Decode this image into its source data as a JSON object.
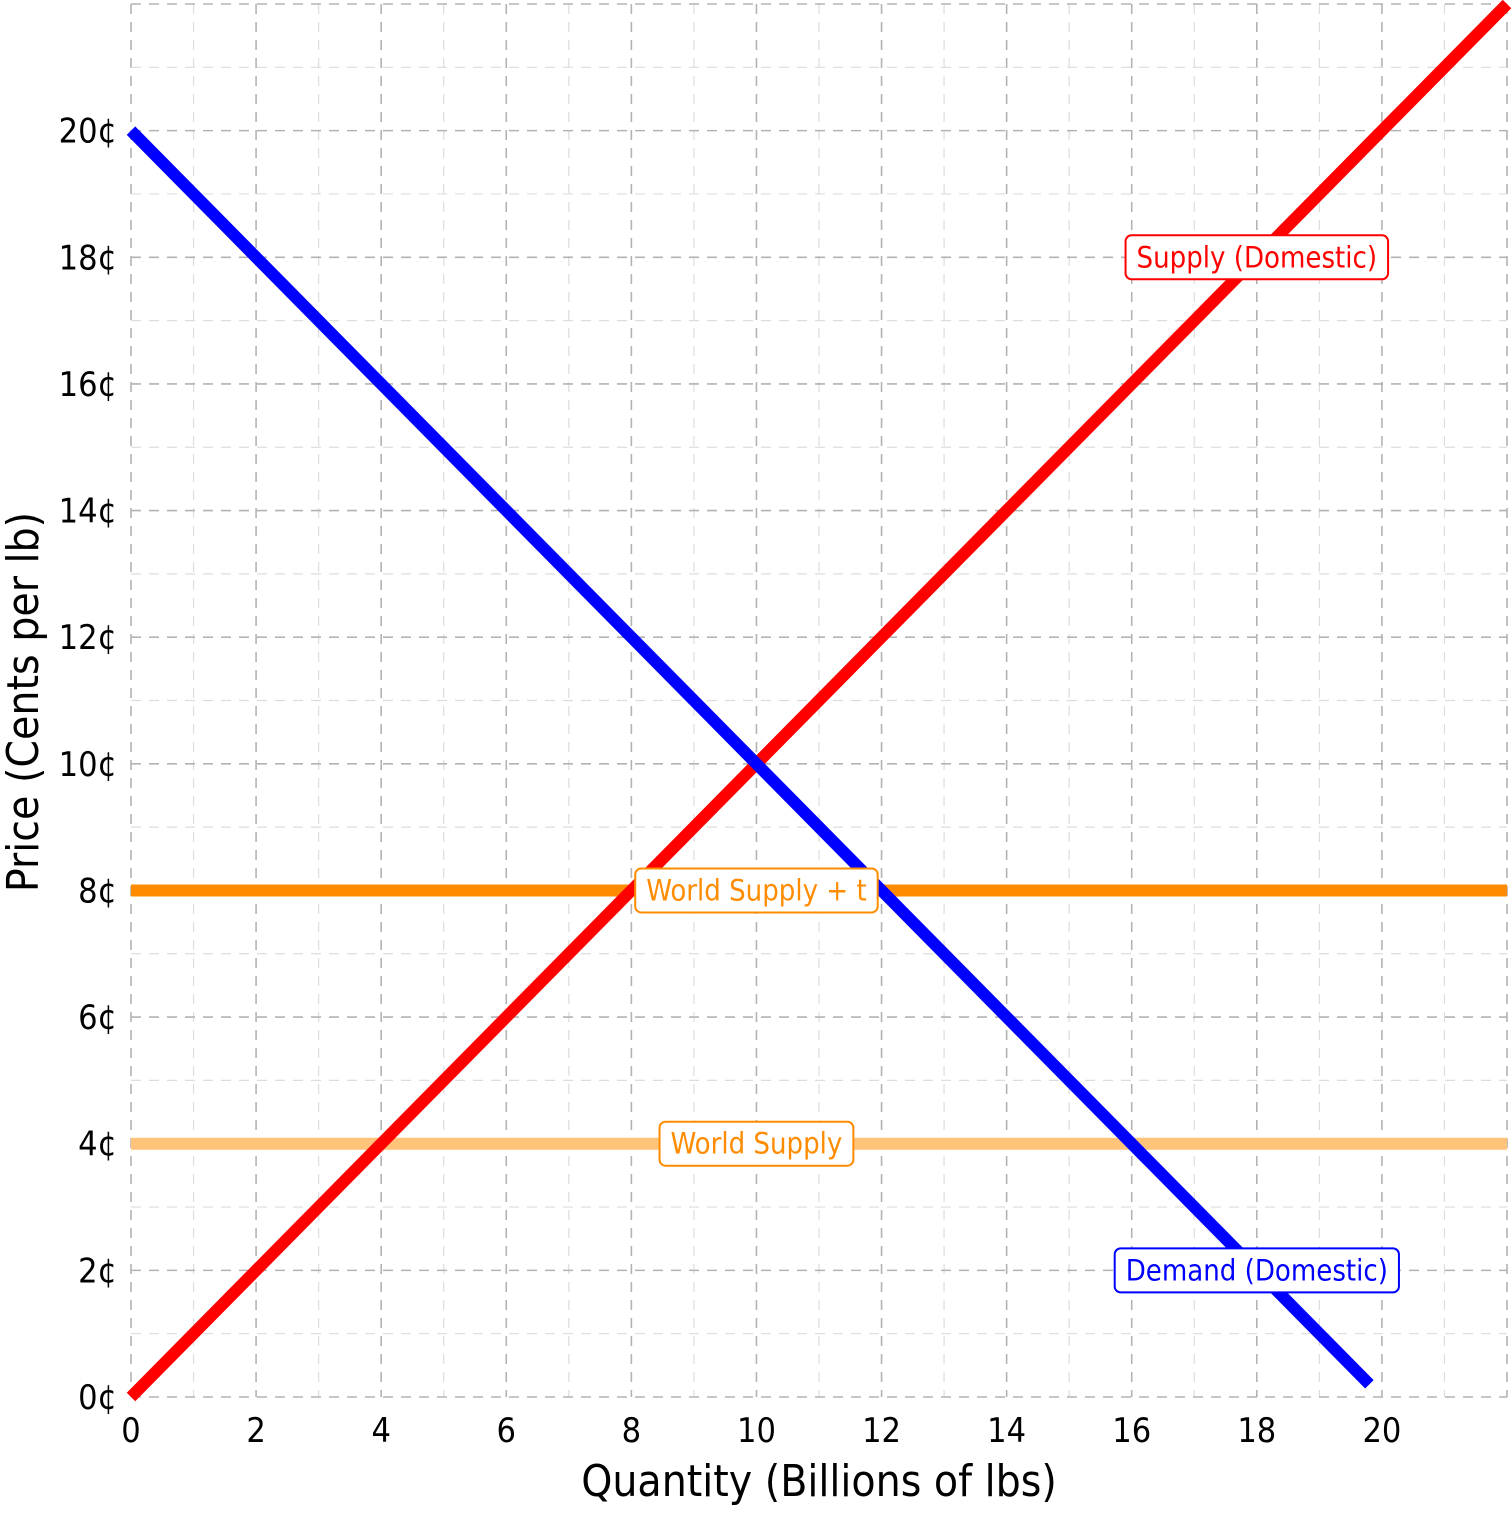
{
  "chart_data": {
    "type": "line",
    "xlabel": "Quantity (Billions of lbs)",
    "ylabel": "Price (Cents per lb)",
    "xlim": [
      0,
      22
    ],
    "ylim": [
      0,
      22
    ],
    "x_ticks": [
      0,
      2,
      4,
      6,
      8,
      10,
      12,
      14,
      16,
      18,
      20
    ],
    "y_ticks": [
      0,
      2,
      4,
      6,
      8,
      10,
      12,
      14,
      16,
      18,
      20
    ],
    "x_tick_labels": [
      "0",
      "2",
      "4",
      "6",
      "8",
      "10",
      "12",
      "14",
      "16",
      "18",
      "20"
    ],
    "y_tick_labels": [
      "0¢",
      "2¢",
      "4¢",
      "6¢",
      "8¢",
      "10¢",
      "12¢",
      "14¢",
      "16¢",
      "18¢",
      "20¢"
    ],
    "grid": true,
    "series": [
      {
        "name": "Supply (Domestic)",
        "color": "#ff0000",
        "x": [
          0,
          22
        ],
        "y": [
          0,
          22
        ],
        "label_at": [
          18,
          18
        ]
      },
      {
        "name": "Demand (Domestic)",
        "color": "#0000ff",
        "x": [
          0,
          19.8
        ],
        "y": [
          20,
          0.2
        ],
        "label_at": [
          18,
          2
        ]
      },
      {
        "name": "World Supply + t",
        "color": "#ff8c00",
        "x": [
          0,
          22
        ],
        "y": [
          8,
          8
        ],
        "label_at": [
          10,
          8
        ]
      },
      {
        "name": "World Supply",
        "color": "#ffc37a",
        "label_color": "#ff8c00",
        "x": [
          0,
          22
        ],
        "y": [
          4,
          4
        ],
        "label_at": [
          10,
          4
        ]
      }
    ]
  }
}
